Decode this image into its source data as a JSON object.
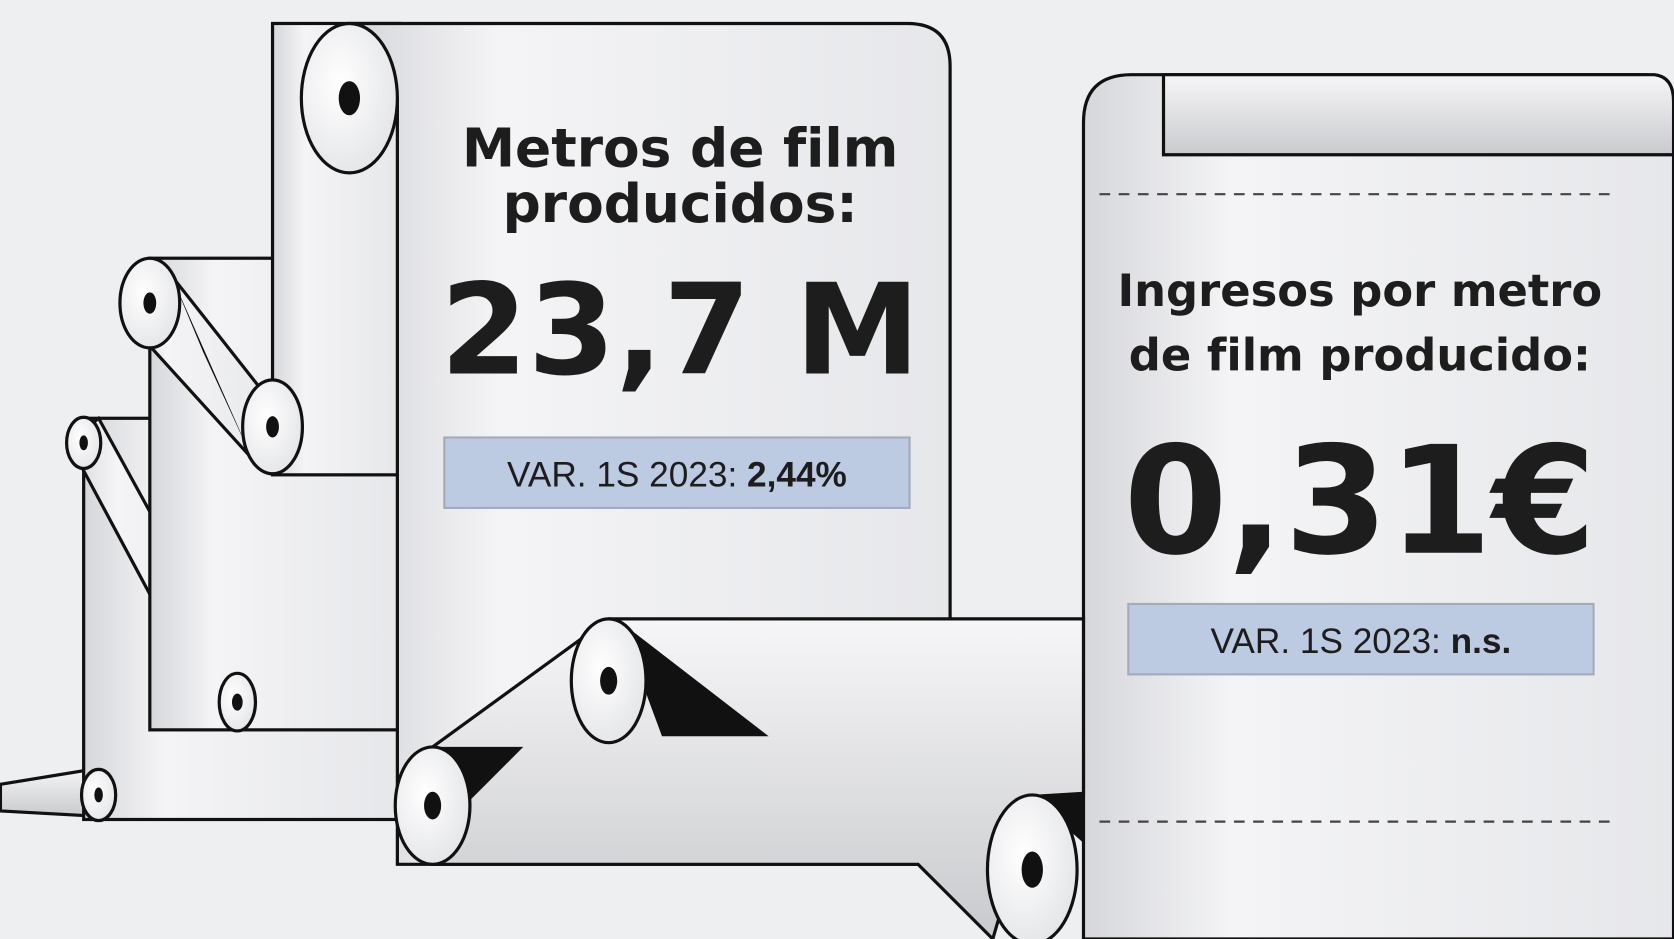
{
  "left_panel": {
    "title_lines": [
      "Metros de film",
      "producidos:"
    ],
    "value": "23,7 M",
    "variation": {
      "label": "VAR. 1S 2023:",
      "value": "2,44%"
    }
  },
  "right_panel": {
    "title_lines": [
      "Ingresos por metro",
      "de film producido:"
    ],
    "value": "0,31€",
    "variation": {
      "label": "VAR. 1S 2023:",
      "value": "n.s."
    }
  }
}
